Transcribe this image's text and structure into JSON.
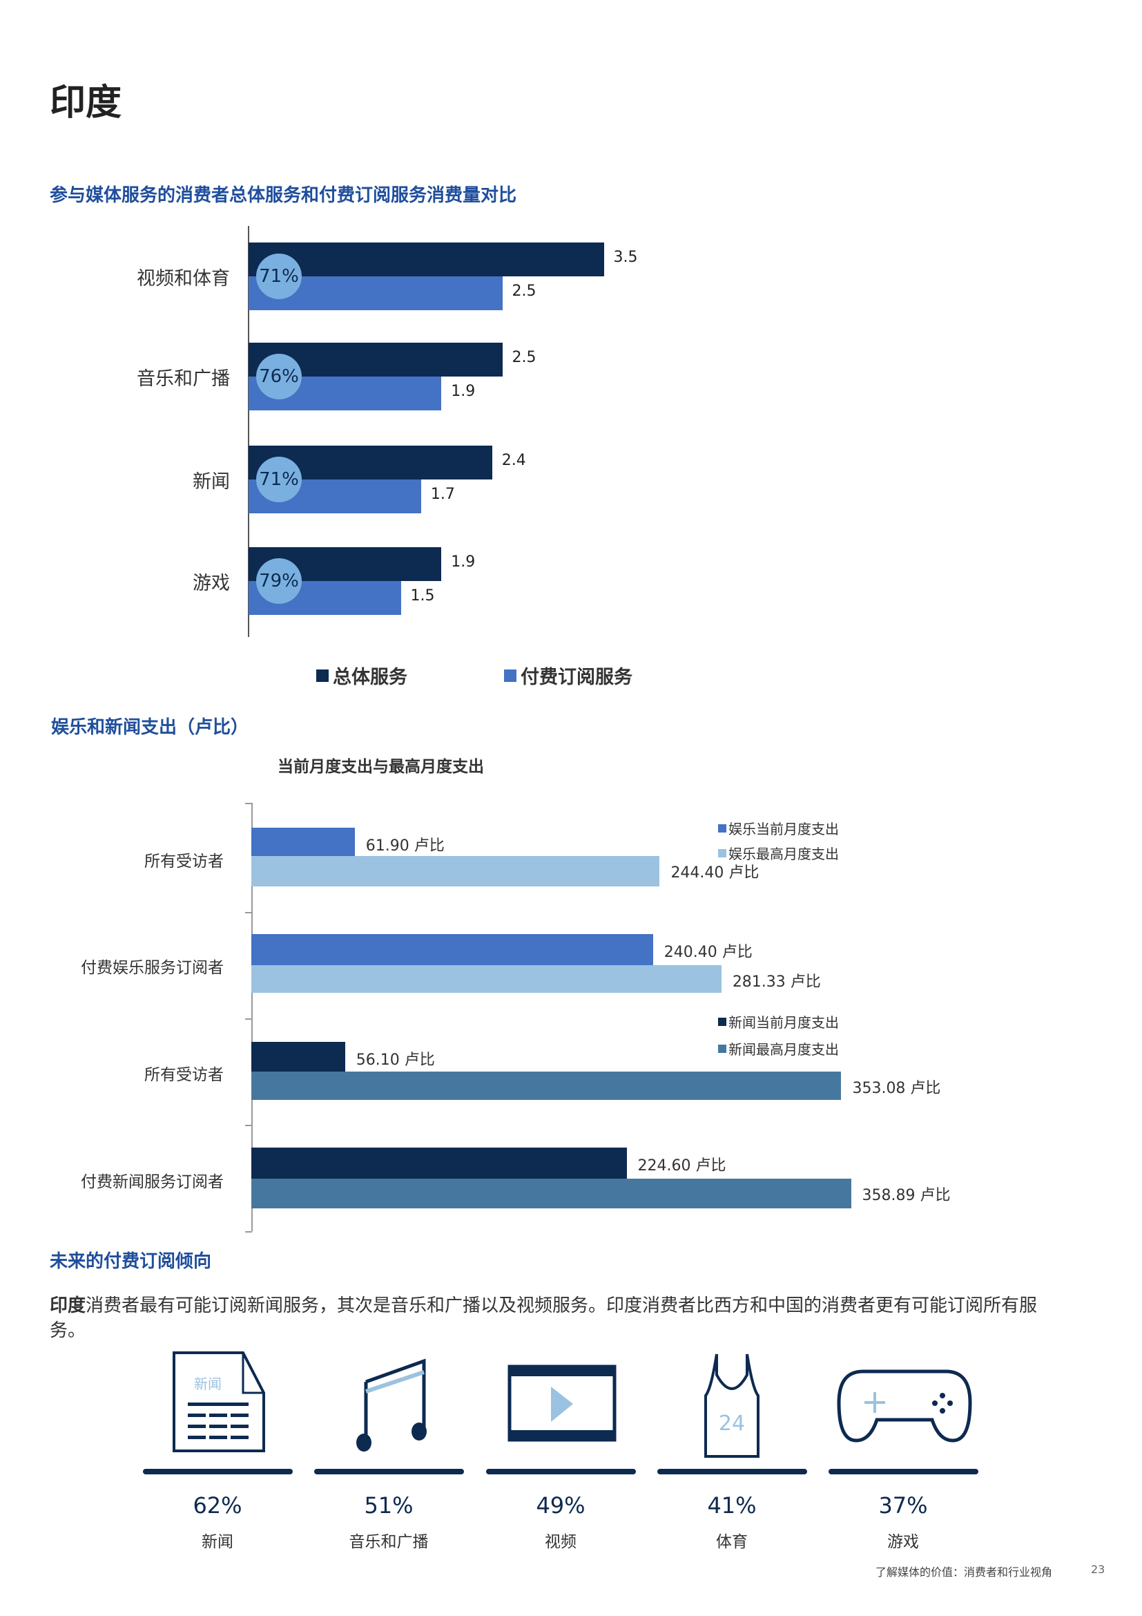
{
  "page_title": "印度",
  "section1": {
    "title": "参与媒体服务的消费者总体服务和付费订阅服务消费量对比"
  },
  "section2": {
    "title": "娱乐和新闻支出（卢比）"
  },
  "section3": {
    "title": "未来的付费订阅倾向",
    "paragraph_bold": "印度",
    "paragraph_rest": "消费者最有可能订阅新闻服务，其次是音乐和广播以及视频服务。印度消费者比西方和中国的消费者更有可能订阅所有服务。",
    "items": [
      {
        "icon": "newspaper-icon",
        "icon_text": "新闻",
        "pct": "62%",
        "label": "新闻"
      },
      {
        "icon": "music-note-icon",
        "pct": "51%",
        "label": "音乐和广播"
      },
      {
        "icon": "video-film-icon",
        "pct": "49%",
        "label": "视频"
      },
      {
        "icon": "jersey-icon",
        "icon_text": "24",
        "pct": "41%",
        "label": "体育"
      },
      {
        "icon": "gamepad-icon",
        "pct": "37%",
        "label": "游戏"
      }
    ]
  },
  "chart_data": [
    {
      "type": "bar",
      "orientation": "horizontal",
      "categories": [
        "视频和体育",
        "音乐和广播",
        "新闻",
        "游戏"
      ],
      "series": [
        {
          "name": "总体服务",
          "values": [
            3.5,
            2.5,
            2.4,
            1.9
          ],
          "color": "#0d2a50"
        },
        {
          "name": "付费订阅服务",
          "values": [
            2.5,
            1.9,
            1.7,
            1.5
          ],
          "color": "#4472c4"
        }
      ],
      "value_labels": [
        [
          "3.5",
          "2.5",
          "2.4",
          "1.9"
        ],
        [
          "2.5",
          "1.9",
          "1.7",
          "1.5"
        ]
      ],
      "badges": [
        "71%",
        "76%",
        "71%",
        "79%"
      ],
      "badge_color": "#7ab0e0",
      "legend": "bottom"
    },
    {
      "type": "bar",
      "orientation": "horizontal",
      "subtitle": "当前月度支出与最高月度支出",
      "categories": [
        "所有受访者",
        "付费娱乐服务订阅者",
        "所有受访者",
        "付费新闻服务订阅者"
      ],
      "groups": [
        {
          "bars": [
            {
              "series": 0,
              "value": 61.9,
              "label": "61.90 卢比"
            },
            {
              "series": 1,
              "value": 244.4,
              "label": "244.40 卢比"
            }
          ]
        },
        {
          "bars": [
            {
              "series": 0,
              "value": 240.4,
              "label": "240.40 卢比"
            },
            {
              "series": 1,
              "value": 281.33,
              "label": "281.33 卢比"
            }
          ]
        },
        {
          "bars": [
            {
              "series": 2,
              "value": 56.1,
              "label": "56.10 卢比"
            },
            {
              "series": 3,
              "value": 353.08,
              "label": "353.08 卢比"
            }
          ]
        },
        {
          "bars": [
            {
              "series": 2,
              "value": 224.6,
              "label": "224.60 卢比"
            },
            {
              "series": 3,
              "value": 358.89,
              "label": "358.89 卢比"
            }
          ]
        }
      ],
      "series": [
        {
          "name": "娱乐当前月度支出",
          "color": "#4472c4"
        },
        {
          "name": "娱乐最高月度支出",
          "color": "#9bc2e0"
        },
        {
          "name": "新闻当前月度支出",
          "color": "#0d2a50"
        },
        {
          "name": "新闻最高月度支出",
          "color": "#46789f"
        }
      ],
      "legend": "right"
    }
  ],
  "footer": {
    "text": "了解媒体的价值：消费者和行业视角",
    "page": "23"
  }
}
